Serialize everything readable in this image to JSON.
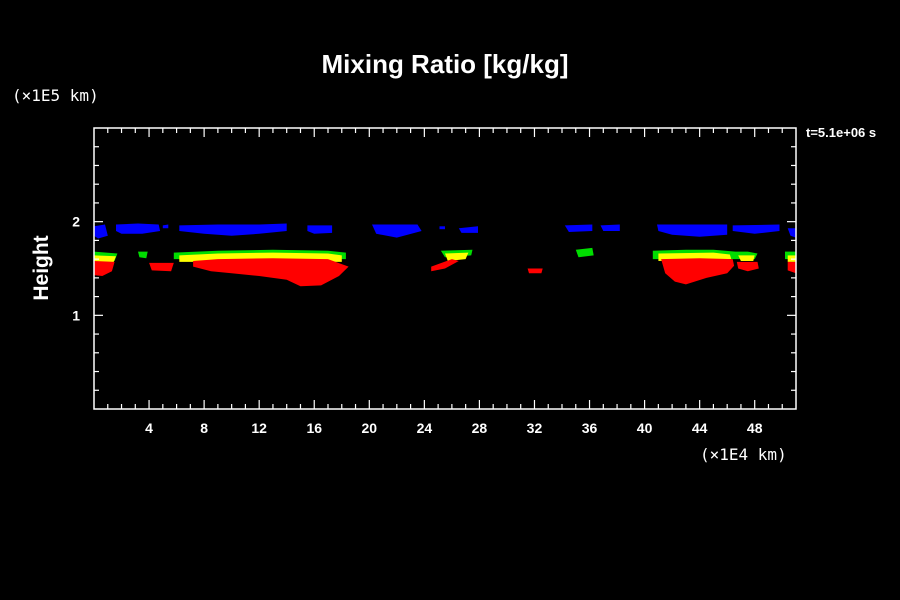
{
  "chart_data": {
    "type": "heatmap",
    "title": "Mixing Ratio [kg/kg]",
    "ylabel": "Height",
    "x_unit_label": "(×1E4 km)",
    "y_unit_label": "(×1E5 km)",
    "time_label": "t=5.1e+06 s",
    "xlim": [
      0,
      51
    ],
    "ylim": [
      0,
      3
    ],
    "x_ticks": [
      4,
      8,
      12,
      16,
      20,
      24,
      28,
      32,
      36,
      40,
      44,
      48
    ],
    "x_tick_labels": [
      "4",
      "8",
      "12",
      "16",
      "20",
      "24",
      "28",
      "32",
      "36",
      "40",
      "44",
      "48"
    ],
    "y_ticks": [
      1,
      2
    ],
    "y_tick_labels": [
      "1",
      "2"
    ],
    "colors": {
      "background": "#000000",
      "axes": "#ffffff",
      "level1": "#0000ff",
      "level2": "#00dd00",
      "level3": "#ffff00",
      "level4": "#ff0000"
    },
    "regions": [
      {
        "level": "level1",
        "points": [
          [
            0,
            1.95
          ],
          [
            0.8,
            1.97
          ],
          [
            1,
            1.85
          ],
          [
            0.3,
            1.82
          ],
          [
            0,
            1.85
          ]
        ]
      },
      {
        "level": "level1",
        "points": [
          [
            1.6,
            1.97
          ],
          [
            3.2,
            1.98
          ],
          [
            4.7,
            1.97
          ],
          [
            4.8,
            1.9
          ],
          [
            3.5,
            1.87
          ],
          [
            2,
            1.87
          ],
          [
            1.6,
            1.9
          ]
        ]
      },
      {
        "level": "level1",
        "points": [
          [
            5,
            1.96
          ],
          [
            5.4,
            1.97
          ],
          [
            5.4,
            1.93
          ],
          [
            5,
            1.93
          ]
        ]
      },
      {
        "level": "level1",
        "points": [
          [
            6.2,
            1.96
          ],
          [
            9,
            1.97
          ],
          [
            12,
            1.97
          ],
          [
            14,
            1.98
          ],
          [
            14,
            1.9
          ],
          [
            12,
            1.87
          ],
          [
            10,
            1.85
          ],
          [
            8,
            1.87
          ],
          [
            6.2,
            1.9
          ]
        ]
      },
      {
        "level": "level1",
        "points": [
          [
            15.5,
            1.96
          ],
          [
            17.3,
            1.96
          ],
          [
            17.3,
            1.88
          ],
          [
            16,
            1.87
          ],
          [
            15.5,
            1.9
          ]
        ]
      },
      {
        "level": "level1",
        "points": [
          [
            20.2,
            1.97
          ],
          [
            23.5,
            1.97
          ],
          [
            23.8,
            1.9
          ],
          [
            22,
            1.83
          ],
          [
            20.5,
            1.87
          ]
        ]
      },
      {
        "level": "level1",
        "points": [
          [
            25.1,
            1.95
          ],
          [
            25.5,
            1.95
          ],
          [
            25.5,
            1.92
          ],
          [
            25.1,
            1.92
          ]
        ]
      },
      {
        "level": "level1",
        "points": [
          [
            26.5,
            1.93
          ],
          [
            27.9,
            1.95
          ],
          [
            27.9,
            1.88
          ],
          [
            26.7,
            1.88
          ]
        ]
      },
      {
        "level": "level1",
        "points": [
          [
            34.2,
            1.96
          ],
          [
            36.2,
            1.97
          ],
          [
            36.2,
            1.9
          ],
          [
            34.5,
            1.89
          ]
        ]
      },
      {
        "level": "level1",
        "points": [
          [
            36.8,
            1.96
          ],
          [
            38.2,
            1.97
          ],
          [
            38.2,
            1.9
          ],
          [
            37,
            1.9
          ]
        ]
      },
      {
        "level": "level1",
        "points": [
          [
            40.9,
            1.97
          ],
          [
            46,
            1.97
          ],
          [
            46,
            1.86
          ],
          [
            44,
            1.84
          ],
          [
            42,
            1.86
          ],
          [
            41,
            1.9
          ]
        ]
      },
      {
        "level": "level1",
        "points": [
          [
            46.4,
            1.96
          ],
          [
            49.8,
            1.97
          ],
          [
            49.8,
            1.9
          ],
          [
            48,
            1.87
          ],
          [
            46.4,
            1.9
          ]
        ]
      },
      {
        "level": "level1",
        "points": [
          [
            50.4,
            1.93
          ],
          [
            51,
            1.93
          ],
          [
            51,
            1.83
          ],
          [
            50.6,
            1.85
          ]
        ]
      },
      {
        "level": "level2",
        "points": [
          [
            0,
            1.68
          ],
          [
            1.7,
            1.66
          ],
          [
            1.5,
            1.58
          ],
          [
            0,
            1.6
          ]
        ]
      },
      {
        "level": "level2",
        "points": [
          [
            3.2,
            1.68
          ],
          [
            3.9,
            1.68
          ],
          [
            3.8,
            1.61
          ],
          [
            3.3,
            1.62
          ]
        ]
      },
      {
        "level": "level2",
        "points": [
          [
            5.8,
            1.67
          ],
          [
            9,
            1.69
          ],
          [
            13,
            1.7
          ],
          [
            17,
            1.69
          ],
          [
            18.3,
            1.67
          ],
          [
            18.3,
            1.6
          ],
          [
            5.8,
            1.6
          ]
        ]
      },
      {
        "level": "level2",
        "points": [
          [
            25.2,
            1.69
          ],
          [
            27.5,
            1.7
          ],
          [
            27.4,
            1.64
          ],
          [
            25.5,
            1.62
          ]
        ]
      },
      {
        "level": "level2",
        "points": [
          [
            35,
            1.7
          ],
          [
            36.2,
            1.72
          ],
          [
            36.3,
            1.64
          ],
          [
            35.2,
            1.62
          ]
        ]
      },
      {
        "level": "level2",
        "points": [
          [
            40.6,
            1.69
          ],
          [
            43,
            1.7
          ],
          [
            45,
            1.7
          ],
          [
            46.6,
            1.68
          ],
          [
            47.5,
            1.68
          ],
          [
            48.2,
            1.66
          ],
          [
            48,
            1.6
          ],
          [
            40.6,
            1.6
          ]
        ]
      },
      {
        "level": "level2",
        "points": [
          [
            50.2,
            1.68
          ],
          [
            51,
            1.68
          ],
          [
            51,
            1.6
          ],
          [
            50.2,
            1.6
          ]
        ]
      },
      {
        "level": "level3",
        "points": [
          [
            0,
            1.64
          ],
          [
            1.6,
            1.63
          ],
          [
            1.4,
            1.56
          ],
          [
            0,
            1.57
          ]
        ]
      },
      {
        "level": "level3",
        "points": [
          [
            6.2,
            1.64
          ],
          [
            9,
            1.66
          ],
          [
            13,
            1.67
          ],
          [
            17,
            1.66
          ],
          [
            18,
            1.64
          ],
          [
            18,
            1.57
          ],
          [
            6.2,
            1.57
          ]
        ]
      },
      {
        "level": "level3",
        "points": [
          [
            25.5,
            1.66
          ],
          [
            27.2,
            1.67
          ],
          [
            27,
            1.6
          ],
          [
            25.7,
            1.58
          ]
        ]
      },
      {
        "level": "level3",
        "points": [
          [
            41,
            1.66
          ],
          [
            45,
            1.67
          ],
          [
            46.2,
            1.65
          ],
          [
            46.3,
            1.6
          ],
          [
            41,
            1.58
          ]
        ]
      },
      {
        "level": "level3",
        "points": [
          [
            46.8,
            1.64
          ],
          [
            48,
            1.64
          ],
          [
            47.9,
            1.58
          ],
          [
            47,
            1.58
          ]
        ]
      },
      {
        "level": "level3",
        "points": [
          [
            50.4,
            1.64
          ],
          [
            51,
            1.64
          ],
          [
            51,
            1.57
          ],
          [
            50.4,
            1.57
          ]
        ]
      },
      {
        "level": "level4",
        "points": [
          [
            0,
            1.58
          ],
          [
            1.5,
            1.57
          ],
          [
            1.3,
            1.47
          ],
          [
            0.6,
            1.42
          ],
          [
            0,
            1.43
          ]
        ]
      },
      {
        "level": "level4",
        "points": [
          [
            4,
            1.56
          ],
          [
            5.8,
            1.56
          ],
          [
            5.6,
            1.47
          ],
          [
            4.2,
            1.48
          ]
        ]
      },
      {
        "level": "level4",
        "points": [
          [
            7.2,
            1.58
          ],
          [
            9,
            1.6
          ],
          [
            13,
            1.61
          ],
          [
            17,
            1.6
          ],
          [
            18.5,
            1.52
          ],
          [
            17.8,
            1.42
          ],
          [
            16.5,
            1.32
          ],
          [
            15,
            1.31
          ],
          [
            14,
            1.38
          ],
          [
            12,
            1.42
          ],
          [
            10,
            1.45
          ],
          [
            8.5,
            1.47
          ],
          [
            7.2,
            1.52
          ]
        ]
      },
      {
        "level": "level4",
        "points": [
          [
            24.5,
            1.52
          ],
          [
            26,
            1.6
          ],
          [
            26.5,
            1.58
          ],
          [
            25.5,
            1.5
          ],
          [
            24.5,
            1.47
          ]
        ]
      },
      {
        "level": "level4",
        "points": [
          [
            31.5,
            1.5
          ],
          [
            32.6,
            1.5
          ],
          [
            32.5,
            1.45
          ],
          [
            31.6,
            1.45
          ]
        ]
      },
      {
        "level": "level4",
        "points": [
          [
            41.2,
            1.6
          ],
          [
            44,
            1.61
          ],
          [
            46.4,
            1.6
          ],
          [
            46.5,
            1.53
          ],
          [
            46,
            1.45
          ],
          [
            44.5,
            1.4
          ],
          [
            43,
            1.33
          ],
          [
            42.2,
            1.36
          ],
          [
            41.5,
            1.45
          ]
        ]
      },
      {
        "level": "level4",
        "points": [
          [
            46.7,
            1.57
          ],
          [
            48.2,
            1.57
          ],
          [
            48.3,
            1.5
          ],
          [
            47.5,
            1.47
          ],
          [
            46.8,
            1.5
          ]
        ]
      },
      {
        "level": "level4",
        "points": [
          [
            50.4,
            1.57
          ],
          [
            51,
            1.57
          ],
          [
            51,
            1.45
          ],
          [
            50.4,
            1.48
          ]
        ]
      }
    ]
  }
}
